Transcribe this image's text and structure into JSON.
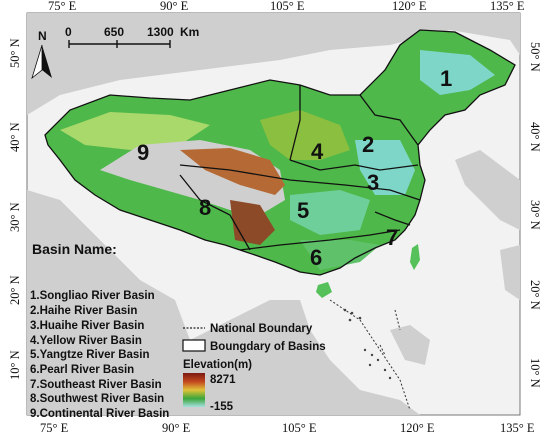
{
  "lon_ticks": [
    "75° E",
    "90° E",
    "105° E",
    "120° E",
    "135° E"
  ],
  "lat_ticks": [
    "50° N",
    "40° N",
    "30° N",
    "20° N",
    "10° N"
  ],
  "north_arrow": "N",
  "scale_bar": {
    "labels": [
      "0",
      "650",
      "1300",
      "Km"
    ]
  },
  "basins": [
    {
      "num": "1",
      "name": "1.Songliao River Basin"
    },
    {
      "num": "2",
      "name": "2.Haihe River Basin"
    },
    {
      "num": "3",
      "name": "3.Huaihe River Basin"
    },
    {
      "num": "4",
      "name": "4.Yellow River Basin"
    },
    {
      "num": "5",
      "name": "5.Yangtze River Basin"
    },
    {
      "num": "6",
      "name": "6.Pearl River Basin"
    },
    {
      "num": "7",
      "name": "7.Southeast River Basin"
    },
    {
      "num": "8",
      "name": "8.Southwest River Basin"
    },
    {
      "num": "9",
      "name": "9.Continental River Basin"
    }
  ],
  "legend": {
    "basin_name_title": "Basin Name:",
    "national_boundary": "National Boundary",
    "basin_boundary": "Boungdary of Basins",
    "elevation_title": "Elevation(m)",
    "elevation_max": "8271",
    "elevation_min": "-155"
  },
  "colors": {
    "ocean": "#ffffff",
    "neighbor_land": "#d3d3d3",
    "lowland": "#7fd3c6",
    "plain_green": "#3fb23f",
    "highland": "#b05a2a",
    "plateau": "#cfcfcf"
  }
}
